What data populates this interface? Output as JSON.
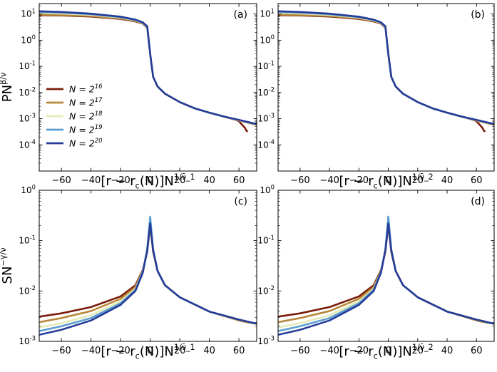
{
  "figure": {
    "rows": 2,
    "cols": 2
  },
  "chart_data": [
    {
      "type": "line",
      "panel": "(a)",
      "ylabel": "PN^{β/ν̄}",
      "xlabel": "[r − r_c(N)]N^{1/ν̄_1}",
      "yscale": "log",
      "xlim": [
        -75,
        72
      ],
      "ylim_log10": [
        -5,
        1.4
      ],
      "x_ticks": [
        -60,
        -40,
        -20,
        0,
        20,
        40,
        60
      ],
      "y_ticks_log10": [
        -4,
        -3,
        -2,
        -1,
        0,
        1
      ],
      "x_tick_labels": [
        "−60",
        "−40",
        "−20",
        "0",
        "20",
        "40",
        "60"
      ],
      "y_tick_labels": [
        "10^{-4}",
        "10^{-3}",
        "10^{-2}",
        "10^{-1}",
        "10^{0}",
        "10^{1}"
      ],
      "legend": true,
      "legend_loc": "center-left",
      "series": [
        {
          "name": "N = 2^{16}",
          "color": "#7a1c0a",
          "x": [
            -75,
            -60,
            -40,
            -20,
            -10,
            -5,
            -2,
            0,
            2,
            5,
            10,
            20,
            30,
            40,
            50,
            55,
            58,
            60,
            62,
            64,
            65,
            66
          ],
          "y": [
            9.0,
            8.8,
            8.0,
            6.5,
            5.2,
            4.3,
            3.0,
            0.3,
            0.04,
            0.017,
            0.009,
            0.0043,
            0.0025,
            0.0017,
            0.0012,
            0.001,
            0.0009,
            0.0008,
            0.0006,
            0.00045,
            0.00035,
            0.00032
          ]
        },
        {
          "name": "N = 2^{17}",
          "color": "#b8893a",
          "x": [
            -75,
            -60,
            -40,
            -20,
            -10,
            -5,
            -2,
            0,
            2,
            5,
            10,
            20,
            30,
            40,
            50,
            60,
            70,
            72
          ],
          "y": [
            9.5,
            9.2,
            8.4,
            6.8,
            5.4,
            4.4,
            3.1,
            0.3,
            0.04,
            0.017,
            0.009,
            0.0043,
            0.0025,
            0.0017,
            0.0012,
            0.00085,
            0.00062,
            0.0006
          ]
        },
        {
          "name": "N = 2^{18}",
          "color": "#e4ebb8",
          "x": [
            -75,
            -60,
            -40,
            -20,
            -10,
            -5,
            -2,
            0,
            2,
            5,
            10,
            20,
            30,
            40,
            50,
            60,
            70,
            72
          ],
          "y": [
            11.0,
            10.5,
            9.3,
            7.3,
            5.7,
            4.6,
            3.2,
            0.3,
            0.04,
            0.017,
            0.009,
            0.0043,
            0.0025,
            0.0017,
            0.0012,
            0.00088,
            0.00065,
            0.00062
          ]
        },
        {
          "name": "N = 2^{19}",
          "color": "#5d9ed0",
          "x": [
            -75,
            -60,
            -40,
            -20,
            -10,
            -5,
            -2,
            0,
            2,
            5,
            10,
            20,
            30,
            40,
            50,
            60,
            70,
            72
          ],
          "y": [
            12.0,
            11.3,
            9.8,
            7.6,
            5.9,
            4.7,
            3.3,
            0.3,
            0.04,
            0.017,
            0.009,
            0.0043,
            0.0025,
            0.0017,
            0.0012,
            0.0009,
            0.00066,
            0.00063
          ]
        },
        {
          "name": "N = 2^{20}",
          "color": "#253c98",
          "x": [
            -75,
            -60,
            -40,
            -20,
            -10,
            -5,
            -2,
            0,
            2,
            5,
            10,
            20,
            30,
            40,
            50,
            60,
            70,
            72
          ],
          "y": [
            12.8,
            12.0,
            10.3,
            7.9,
            6.1,
            4.8,
            3.4,
            0.3,
            0.04,
            0.017,
            0.009,
            0.0043,
            0.0025,
            0.0017,
            0.0012,
            0.0009,
            0.00066,
            0.00063
          ]
        }
      ]
    },
    {
      "type": "line",
      "panel": "(b)",
      "xlabel": "[r − r_c(N)]N^{1/ν̄_2}",
      "yscale": "log",
      "xlim": [
        -75,
        72
      ],
      "ylim_log10": [
        -5,
        1.4
      ],
      "x_ticks": [
        -60,
        -40,
        -20,
        0,
        20,
        40,
        60
      ],
      "y_ticks_log10": [
        -4,
        -3,
        -2,
        -1,
        0,
        1
      ],
      "x_tick_labels": [
        "−60",
        "−40",
        "−20",
        "0",
        "20",
        "40",
        "60"
      ],
      "y_tick_labels": [
        "10^{-4}",
        "10^{-3}",
        "10^{-2}",
        "10^{-1}",
        "10^{0}",
        "10^{1}"
      ],
      "legend": false,
      "series": [
        {
          "name": "N = 2^{16}",
          "color": "#7a1c0a",
          "x": [
            -75,
            -60,
            -40,
            -20,
            -10,
            -5,
            -2,
            0,
            2,
            5,
            10,
            20,
            30,
            40,
            50,
            55,
            58,
            60,
            62,
            64,
            65,
            66
          ],
          "y": [
            9.0,
            8.8,
            8.0,
            6.5,
            5.2,
            4.3,
            3.0,
            0.3,
            0.04,
            0.017,
            0.009,
            0.0043,
            0.0025,
            0.0017,
            0.0012,
            0.001,
            0.0009,
            0.0008,
            0.0006,
            0.00045,
            0.00035,
            0.00032
          ]
        },
        {
          "name": "N = 2^{17}",
          "color": "#b8893a",
          "x": [
            -75,
            -60,
            -40,
            -20,
            -10,
            -5,
            -2,
            0,
            2,
            5,
            10,
            20,
            30,
            40,
            50,
            60,
            70,
            72
          ],
          "y": [
            9.5,
            9.2,
            8.4,
            6.8,
            5.4,
            4.4,
            3.1,
            0.3,
            0.04,
            0.017,
            0.009,
            0.0043,
            0.0025,
            0.0017,
            0.0012,
            0.00085,
            0.00062,
            0.0006
          ]
        },
        {
          "name": "N = 2^{18}",
          "color": "#e4ebb8",
          "x": [
            -75,
            -60,
            -40,
            -20,
            -10,
            -5,
            -2,
            0,
            2,
            5,
            10,
            20,
            30,
            40,
            50,
            60,
            70,
            72
          ],
          "y": [
            11.0,
            10.5,
            9.3,
            7.3,
            5.7,
            4.6,
            3.2,
            0.3,
            0.04,
            0.017,
            0.009,
            0.0043,
            0.0025,
            0.0017,
            0.0012,
            0.00088,
            0.00065,
            0.00062
          ]
        },
        {
          "name": "N = 2^{19}",
          "color": "#5d9ed0",
          "x": [
            -75,
            -60,
            -40,
            -20,
            -10,
            -5,
            -2,
            0,
            2,
            5,
            10,
            20,
            30,
            40,
            50,
            60,
            70,
            72
          ],
          "y": [
            12.0,
            11.3,
            9.8,
            7.6,
            5.9,
            4.7,
            3.3,
            0.3,
            0.04,
            0.017,
            0.009,
            0.0043,
            0.0025,
            0.0017,
            0.0012,
            0.0009,
            0.00066,
            0.00063
          ]
        },
        {
          "name": "N = 2^{20}",
          "color": "#253c98",
          "x": [
            -75,
            -60,
            -40,
            -20,
            -10,
            -5,
            -2,
            0,
            2,
            5,
            10,
            20,
            30,
            40,
            50,
            60,
            70,
            72
          ],
          "y": [
            12.8,
            12.0,
            10.3,
            7.9,
            6.1,
            4.8,
            3.4,
            0.3,
            0.04,
            0.017,
            0.009,
            0.0043,
            0.0025,
            0.0017,
            0.0012,
            0.0009,
            0.00066,
            0.00063
          ]
        }
      ]
    },
    {
      "type": "line",
      "panel": "(c)",
      "ylabel": "SN^{−γ/ν̄}",
      "xlabel": "[r − r_c(N)]N^{1/ν̄_1}",
      "yscale": "log",
      "xlim": [
        -75,
        72
      ],
      "ylim_log10": [
        -3,
        0
      ],
      "x_ticks": [
        -60,
        -40,
        -20,
        0,
        20,
        40,
        60
      ],
      "y_ticks_log10": [
        -3,
        -2,
        -1,
        0
      ],
      "x_tick_labels": [
        "−60",
        "−40",
        "−20",
        "0",
        "20",
        "40",
        "60"
      ],
      "y_tick_labels": [
        "10^{-3}",
        "10^{-2}",
        "10^{-1}",
        "10^{0}"
      ],
      "legend": false,
      "series": [
        {
          "name": "N = 2^{16}",
          "color": "#7a1c0a",
          "x": [
            -75,
            -60,
            -40,
            -20,
            -10,
            -5,
            -2,
            0,
            2,
            5,
            10,
            20,
            40,
            60,
            65,
            70,
            72
          ],
          "y": [
            0.0031,
            0.0036,
            0.0048,
            0.0078,
            0.013,
            0.026,
            0.06,
            0.21,
            0.06,
            0.025,
            0.013,
            0.0075,
            0.0039,
            0.0027,
            0.0025,
            0.0023,
            0.0023
          ]
        },
        {
          "name": "N = 2^{17}",
          "color": "#b8893a",
          "x": [
            -75,
            -60,
            -40,
            -20,
            -10,
            -5,
            -2,
            0,
            2,
            5,
            10,
            20,
            40,
            60,
            65,
            70,
            72
          ],
          "y": [
            0.0024,
            0.0029,
            0.004,
            0.007,
            0.012,
            0.025,
            0.062,
            0.23,
            0.062,
            0.025,
            0.013,
            0.0075,
            0.0039,
            0.0026,
            0.0024,
            0.0023,
            0.0022
          ]
        },
        {
          "name": "N = 2^{18}",
          "color": "#e4ebb8",
          "x": [
            -75,
            -60,
            -40,
            -20,
            -10,
            -5,
            -2,
            0,
            2,
            5,
            10,
            20,
            40,
            60,
            65,
            70,
            72
          ],
          "y": [
            0.0019,
            0.0023,
            0.0033,
            0.0062,
            0.011,
            0.024,
            0.065,
            0.27,
            0.065,
            0.025,
            0.013,
            0.0075,
            0.0039,
            0.0027,
            0.0025,
            0.0023,
            0.0023
          ]
        },
        {
          "name": "N = 2^{19}",
          "color": "#5d9ed0",
          "x": [
            -75,
            -60,
            -40,
            -20,
            -10,
            -5,
            -2,
            0,
            2,
            5,
            10,
            20,
            40,
            60,
            65,
            70,
            72
          ],
          "y": [
            0.0016,
            0.002,
            0.0029,
            0.0057,
            0.0105,
            0.024,
            0.068,
            0.3,
            0.068,
            0.025,
            0.013,
            0.0075,
            0.0039,
            0.0027,
            0.0025,
            0.0023,
            0.0023
          ]
        },
        {
          "name": "N = 2^{20}",
          "color": "#253c98",
          "x": [
            -75,
            -60,
            -40,
            -20,
            -10,
            -5,
            -2,
            0,
            2,
            5,
            10,
            20,
            40,
            60,
            65,
            70,
            72
          ],
          "y": [
            0.00135,
            0.0017,
            0.0026,
            0.0053,
            0.01,
            0.023,
            0.064,
            0.22,
            0.064,
            0.025,
            0.013,
            0.0075,
            0.0039,
            0.0027,
            0.0025,
            0.0023,
            0.0023
          ]
        }
      ]
    },
    {
      "type": "line",
      "panel": "(d)",
      "xlabel": "[r − r_c(N)]N^{1/ν̄_2}",
      "yscale": "log",
      "xlim": [
        -75,
        72
      ],
      "ylim_log10": [
        -3,
        0
      ],
      "x_ticks": [
        -60,
        -40,
        -20,
        0,
        20,
        40,
        60
      ],
      "y_ticks_log10": [
        -3,
        -2,
        -1,
        0
      ],
      "x_tick_labels": [
        "−60",
        "−40",
        "−20",
        "0",
        "20",
        "40",
        "60"
      ],
      "y_tick_labels": [
        "10^{-3}",
        "10^{-2}",
        "10^{-1}",
        "10^{0}"
      ],
      "legend": false,
      "series": [
        {
          "name": "N = 2^{16}",
          "color": "#7a1c0a",
          "x": [
            -75,
            -60,
            -40,
            -20,
            -10,
            -5,
            -2,
            0,
            2,
            5,
            10,
            20,
            40,
            60,
            65,
            70,
            72
          ],
          "y": [
            0.0031,
            0.0036,
            0.0048,
            0.0078,
            0.013,
            0.026,
            0.06,
            0.21,
            0.06,
            0.025,
            0.013,
            0.0075,
            0.0039,
            0.0027,
            0.0025,
            0.0023,
            0.0023
          ]
        },
        {
          "name": "N = 2^{17}",
          "color": "#b8893a",
          "x": [
            -75,
            -60,
            -40,
            -20,
            -10,
            -5,
            -2,
            0,
            2,
            5,
            10,
            20,
            40,
            60,
            65,
            70,
            72
          ],
          "y": [
            0.0024,
            0.0029,
            0.004,
            0.007,
            0.012,
            0.025,
            0.062,
            0.23,
            0.062,
            0.025,
            0.013,
            0.0075,
            0.0039,
            0.0026,
            0.0024,
            0.0023,
            0.0022
          ]
        },
        {
          "name": "N = 2^{18}",
          "color": "#e4ebb8",
          "x": [
            -75,
            -60,
            -40,
            -20,
            -10,
            -5,
            -2,
            0,
            2,
            5,
            10,
            20,
            40,
            60,
            65,
            70,
            72
          ],
          "y": [
            0.0019,
            0.0023,
            0.0033,
            0.0062,
            0.011,
            0.024,
            0.065,
            0.27,
            0.065,
            0.025,
            0.013,
            0.0075,
            0.0039,
            0.0027,
            0.0025,
            0.0023,
            0.0023
          ]
        },
        {
          "name": "N = 2^{19}",
          "color": "#5d9ed0",
          "x": [
            -75,
            -60,
            -40,
            -20,
            -10,
            -5,
            -2,
            0,
            2,
            5,
            10,
            20,
            40,
            60,
            65,
            70,
            72
          ],
          "y": [
            0.0016,
            0.002,
            0.0029,
            0.0057,
            0.0105,
            0.024,
            0.068,
            0.3,
            0.068,
            0.025,
            0.013,
            0.0075,
            0.0039,
            0.0027,
            0.0025,
            0.0023,
            0.0023
          ]
        },
        {
          "name": "N = 2^{20}",
          "color": "#253c98",
          "x": [
            -75,
            -60,
            -40,
            -20,
            -10,
            -5,
            -2,
            0,
            2,
            5,
            10,
            20,
            40,
            60,
            65,
            70,
            72
          ],
          "y": [
            0.00135,
            0.0017,
            0.0026,
            0.0053,
            0.01,
            0.023,
            0.064,
            0.22,
            0.064,
            0.025,
            0.013,
            0.0075,
            0.0039,
            0.0027,
            0.0025,
            0.0023,
            0.0023
          ]
        }
      ]
    }
  ]
}
